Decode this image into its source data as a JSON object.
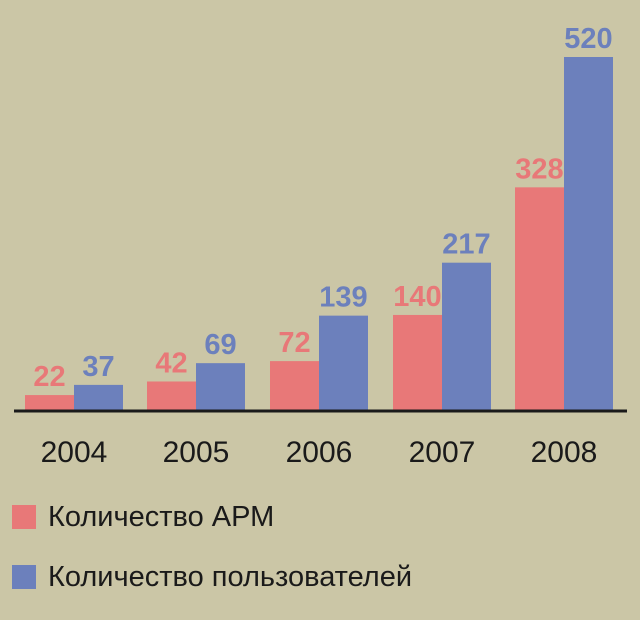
{
  "colors": {
    "background": "#cbc6a6",
    "series_arm": "#e87878",
    "series_users": "#6c80bc",
    "axis": "#1a1a1a"
  },
  "chart_data": {
    "type": "bar",
    "categories": [
      "2004",
      "2005",
      "2006",
      "2007",
      "2008"
    ],
    "series": [
      {
        "name": "Количество АРМ",
        "values": [
          22,
          42,
          72,
          140,
          328
        ]
      },
      {
        "name": "Количество пользователей",
        "values": [
          37,
          69,
          139,
          217,
          520
        ]
      }
    ],
    "title": "",
    "xlabel": "",
    "ylabel": "",
    "ylim": [
      0,
      520
    ],
    "grid": false,
    "legend_position": "bottom-left"
  },
  "legend": {
    "items": [
      {
        "label": "Количество АРМ",
        "color": "#e87878"
      },
      {
        "label": "Количество пользователей",
        "color": "#6c80bc"
      }
    ]
  }
}
